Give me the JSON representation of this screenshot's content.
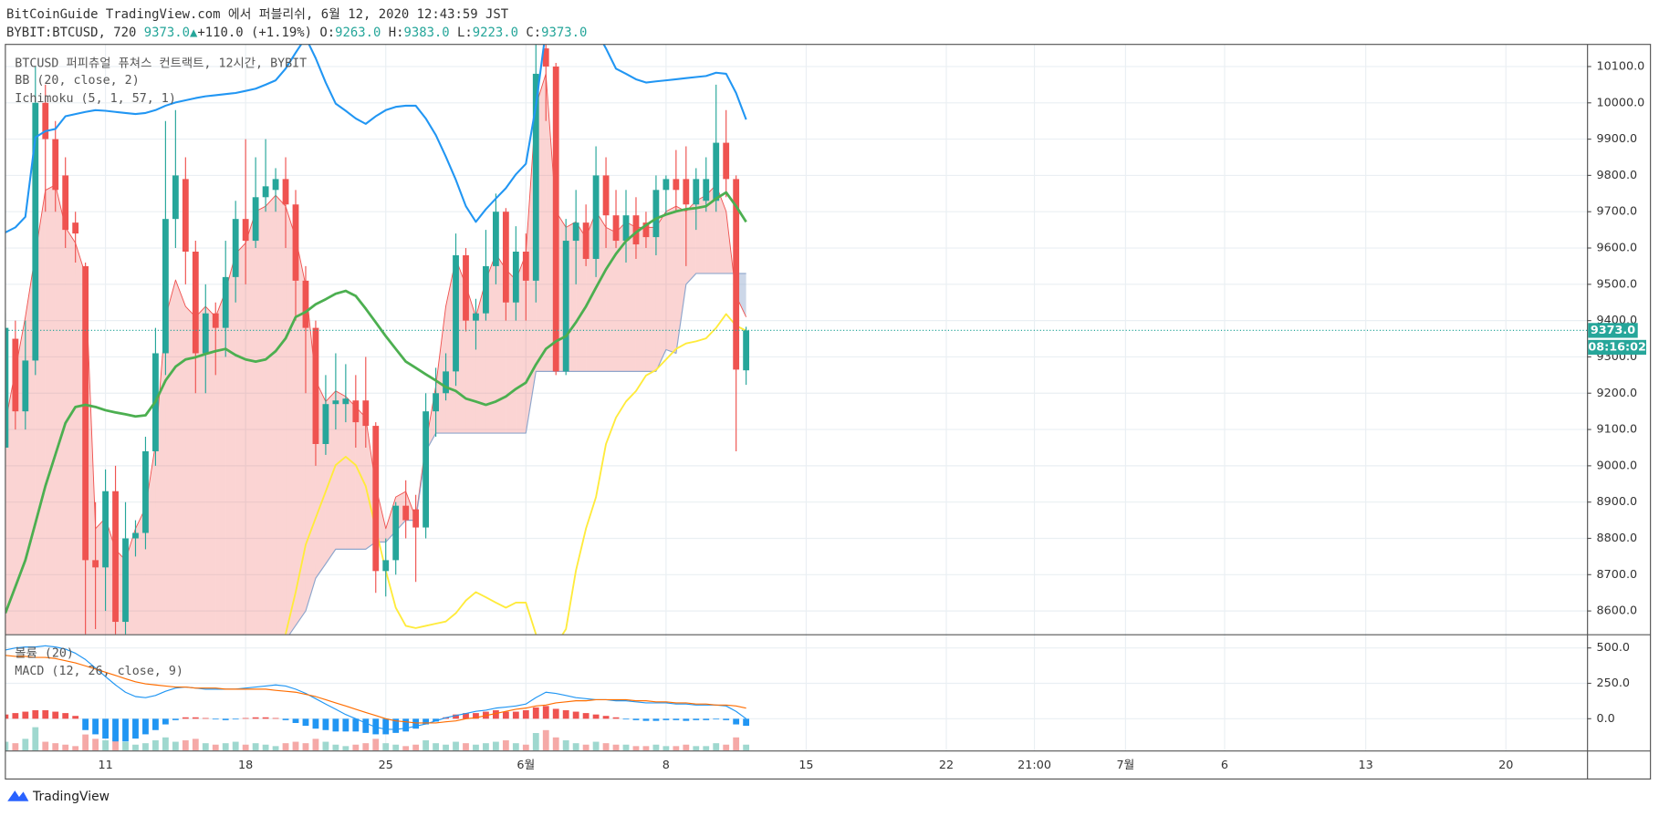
{
  "header": {
    "published": "BitCoinGuide TradingView.com 에서 퍼블리쉬, 6월 12, 2020 12:43:59 JST",
    "symbol": "BYBIT:BTCUSD, 720",
    "last": "9373.0",
    "arrow": "▲",
    "change": "+110.0 (+1.19%)",
    "o_label": "O:",
    "o": "9263.0",
    "h_label": "H:",
    "h": "9383.0",
    "l_label": "L:",
    "l": "9223.0",
    "c_label": "C:",
    "c": "9373.0"
  },
  "footer": {
    "brand": "TradingView"
  },
  "chart_data": [
    {
      "type": "candlestick",
      "legend": [
        "BTCUSD 퍼피츄얼 퓨쳐스 컨트랙트, 12시간, BYBIT",
        "BB (20, close, 2)",
        "Ichimoku (5, 1, 57, 1)"
      ],
      "price_label": "9373.0",
      "countdown": "08:16:02",
      "up_color": "#26a69a",
      "down_color": "#ef5350",
      "grid": true,
      "xlim": [
        0,
        158
      ],
      "xticks": [
        {
          "value": 10,
          "label": "11"
        },
        {
          "value": 24,
          "label": "18"
        },
        {
          "value": 38,
          "label": "25"
        },
        {
          "value": 52,
          "label": "6월"
        },
        {
          "value": 66,
          "label": "8"
        },
        {
          "value": 80,
          "label": "15"
        },
        {
          "value": 94,
          "label": "22"
        },
        {
          "value": 102.8,
          "label": "21:00"
        },
        {
          "value": 111.9,
          "label": "7월"
        },
        {
          "value": 121.8,
          "label": "6"
        },
        {
          "value": 135.9,
          "label": "13"
        },
        {
          "value": 149.9,
          "label": "20"
        }
      ],
      "ylim": [
        8536,
        10161
      ],
      "yticks": [
        {
          "value": 8600,
          "label": "8600.0"
        },
        {
          "value": 8700,
          "label": "8700.0"
        },
        {
          "value": 8800,
          "label": "8800.0"
        },
        {
          "value": 8900,
          "label": "8900.0"
        },
        {
          "value": 9000,
          "label": "9000.0"
        },
        {
          "value": 9100,
          "label": "9100.0"
        },
        {
          "value": 9200,
          "label": "9200.0"
        },
        {
          "value": 9300,
          "label": "9300.0"
        },
        {
          "value": 9400,
          "label": "9400.0"
        },
        {
          "value": 9500,
          "label": "9500.0"
        },
        {
          "value": 9600,
          "label": "9600.0"
        },
        {
          "value": 9700,
          "label": "9700.0"
        },
        {
          "value": 9800,
          "label": "9800.0"
        },
        {
          "value": 9900,
          "label": "9900.0"
        },
        {
          "value": 10000,
          "label": "10000.0"
        },
        {
          "value": 10100,
          "label": "10100.0"
        }
      ],
      "open": [
        9050,
        9350,
        9150,
        9290,
        10000,
        9900,
        9800,
        9670,
        9550,
        8740,
        8720,
        8930,
        8570,
        8800,
        8815,
        9040,
        9310,
        9680,
        9790,
        9590,
        9310,
        9420,
        9380,
        9520,
        9680,
        9620,
        9740,
        9760,
        9790,
        9720,
        9510,
        9380,
        9060,
        9170,
        9170,
        9180,
        9180,
        9110,
        8710,
        8740,
        8890,
        8880,
        8830,
        9150,
        9200,
        9260,
        9580,
        9400,
        9420,
        9550,
        9700,
        9450,
        9590,
        9510,
        10150,
        10100,
        9260,
        9620,
        9670,
        9570,
        9800,
        9690,
        9620,
        9690,
        9670,
        9630,
        9760,
        9790,
        9790,
        9720,
        9730,
        9730,
        9890,
        9790,
        9263
      ],
      "high": [
        9420,
        9400,
        9400,
        10100,
        10050,
        9950,
        9850,
        9700,
        9560,
        8900,
        8990,
        9000,
        8900,
        8850,
        9080,
        9380,
        9950,
        9980,
        9850,
        9620,
        9500,
        9450,
        9620,
        9730,
        9900,
        9850,
        9900,
        9820,
        9850,
        9760,
        9550,
        9400,
        9250,
        9310,
        9280,
        9250,
        9300,
        9120,
        8800,
        8900,
        8960,
        8920,
        9200,
        9270,
        9310,
        9640,
        9600,
        9460,
        9650,
        9750,
        9710,
        9660,
        9640,
        10250,
        10250,
        10110,
        9680,
        9760,
        9720,
        9880,
        9850,
        9760,
        9760,
        9740,
        9700,
        9800,
        9800,
        9870,
        9880,
        9820,
        9850,
        10050,
        9980,
        9800,
        9383
      ],
      "low": [
        8990,
        9100,
        9100,
        9250,
        9700,
        9700,
        9600,
        9560,
        8536,
        8550,
        8600,
        8536,
        8536,
        8750,
        8770,
        9000,
        9250,
        9600,
        9500,
        9200,
        9200,
        9250,
        9300,
        9450,
        9500,
        9600,
        9700,
        9700,
        9600,
        9400,
        9200,
        9000,
        9030,
        9100,
        9120,
        9050,
        9050,
        8650,
        8640,
        8700,
        8800,
        8680,
        8800,
        9080,
        9180,
        9220,
        9370,
        9320,
        9400,
        9500,
        9400,
        9400,
        9400,
        9450,
        9950,
        9250,
        9250,
        9500,
        9550,
        9520,
        9600,
        9600,
        9560,
        9570,
        9600,
        9580,
        9690,
        9700,
        9550,
        9650,
        9700,
        9700,
        9740,
        9040,
        9223
      ],
      "close": [
        9380,
        9150,
        9290,
        10000,
        9900,
        9760,
        9650,
        9640,
        8740,
        8720,
        8930,
        8570,
        8800,
        8815,
        9040,
        9310,
        9680,
        9800,
        9590,
        9310,
        9420,
        9380,
        9520,
        9680,
        9620,
        9740,
        9770,
        9790,
        9720,
        9510,
        9380,
        9060,
        9170,
        9180,
        9185,
        9120,
        9110,
        8710,
        8740,
        8890,
        8850,
        8830,
        9150,
        9200,
        9260,
        9580,
        9400,
        9420,
        9550,
        9700,
        9450,
        9590,
        9510,
        10080,
        10100,
        9260,
        9620,
        9670,
        9570,
        9800,
        9690,
        9620,
        9690,
        9610,
        9630,
        9760,
        9790,
        9760,
        9720,
        9790,
        9790,
        9890,
        9790,
        9265,
        9373
      ],
      "bb_upper": {
        "color": "#2196f3",
        "values": [
          9643,
          9657,
          9686,
          9905,
          9922,
          9928,
          9963,
          9969,
          9975,
          9980,
          9978,
          9975,
          9972,
          9969,
          9972,
          9980,
          9992,
          10001,
          10007,
          10013,
          10018,
          10021,
          10024,
          10027,
          10033,
          10039,
          10050,
          10062,
          10094,
          10138,
          10180,
          10123,
          10056,
          9998,
          9978,
          9957,
          9942,
          9963,
          9980,
          9989,
          9992,
          9992,
          9957,
          9911,
          9852,
          9788,
          9715,
          9672,
          9707,
          9736,
          9765,
          9803,
          9832,
          9992,
          10200,
          10250,
          10270,
          10250,
          10220,
          10200,
          10150,
          10094,
          10080,
          10065,
          10056,
          10059,
          10062,
          10065,
          10068,
          10071,
          10074,
          10083,
          10080,
          10027,
          9954
        ]
      },
      "bb_basis": {
        "color": "#4caf50",
        "values": [
          8594,
          8667,
          8740,
          8842,
          8944,
          9031,
          9118,
          9162,
          9168,
          9162,
          9153,
          9147,
          9142,
          9136,
          9139,
          9177,
          9235,
          9273,
          9293,
          9299,
          9308,
          9316,
          9322,
          9305,
          9293,
          9287,
          9293,
          9316,
          9351,
          9410,
          9424,
          9445,
          9459,
          9474,
          9482,
          9468,
          9433,
          9395,
          9357,
          9322,
          9287,
          9270,
          9252,
          9235,
          9217,
          9206,
          9185,
          9177,
          9168,
          9177,
          9191,
          9212,
          9229,
          9279,
          9322,
          9343,
          9357,
          9395,
          9439,
          9491,
          9541,
          9584,
          9619,
          9643,
          9663,
          9681,
          9692,
          9701,
          9707,
          9710,
          9715,
          9736,
          9753,
          9715,
          9672
        ]
      },
      "span_a": {
        "color": "#ef5350",
        "values": [
          9118,
          9264,
          9410,
          9584,
          9759,
          9774,
          9657,
          9614,
          9526,
          8827,
          8856,
          8769,
          8740,
          8827,
          8885,
          9060,
          9410,
          9512,
          9439,
          9410,
          9439,
          9410,
          9482,
          9584,
          9614,
          9701,
          9715,
          9745,
          9715,
          9628,
          9497,
          9235,
          9177,
          9206,
          9191,
          9162,
          9133,
          8944,
          8827,
          8914,
          8929,
          8856,
          9060,
          9220,
          9439,
          9570,
          9497,
          9410,
          9512,
          9584,
          9541,
          9512,
          9584,
          9992,
          10080,
          9701,
          9657,
          9672,
          9628,
          9701,
          9657,
          9643,
          9672,
          9657,
          9657,
          9657,
          9701,
          9715,
          9701,
          9730,
          9745,
          9774,
          9701,
          9468,
          9410
        ]
      },
      "span_b": {
        "color": "#8fa6cc",
        "values": [
          8450,
          8450,
          8450,
          8450,
          8450,
          8450,
          8450,
          8450,
          8450,
          8450,
          8450,
          8450,
          8450,
          8450,
          8450,
          8450,
          8450,
          8450,
          8450,
          8450,
          8450,
          8450,
          8450,
          8450,
          8450,
          8450,
          8450,
          8450,
          8520,
          8560,
          8600,
          8690,
          8730,
          8770,
          8770,
          8770,
          8770,
          8790,
          8790,
          8820,
          8850,
          8850,
          9040,
          9090,
          9090,
          9090,
          9090,
          9090,
          9090,
          9090,
          9090,
          9090,
          9090,
          9260,
          9260,
          9260,
          9260,
          9260,
          9260,
          9260,
          9260,
          9260,
          9260,
          9260,
          9260,
          9260,
          9320,
          9310,
          9500,
          9530,
          9530,
          9530,
          9530,
          9530,
          9530
        ]
      },
      "lagging": {
        "color": "#ffeb3b",
        "values": [
          null,
          null,
          null,
          null,
          null,
          null,
          null,
          null,
          null,
          null,
          null,
          null,
          null,
          null,
          null,
          null,
          null,
          null,
          null,
          null,
          null,
          null,
          null,
          null,
          null,
          null,
          null,
          null,
          8536,
          8652,
          8783,
          8856,
          8929,
          9002,
          9025,
          9002,
          8944,
          8827,
          8711,
          8609,
          8559,
          8553,
          8559,
          8565,
          8571,
          8594,
          8629,
          8652,
          8638,
          8623,
          8609,
          8623,
          8623,
          8536,
          8492,
          8507,
          8550,
          8711,
          8827,
          8914,
          9060,
          9133,
          9177,
          9206,
          9249,
          9264,
          9293,
          9322,
          9337,
          9343,
          9351,
          9380,
          9418,
          9386,
          9372
        ]
      }
    },
    {
      "type": "macd",
      "legend": [
        "볼륨 (20)",
        "MACD (12, 26, close, 9)"
      ],
      "ylim": [
        -224,
        597
      ],
      "yticks": [
        {
          "value": 500,
          "label": "500.0"
        },
        {
          "value": 250,
          "label": "250.0"
        },
        {
          "value": 0,
          "label": "0.0"
        }
      ],
      "volume_lim": [
        0,
        400
      ],
      "volume_up_color": "#9fd8cf",
      "volume_down_color": "#f5a9a7",
      "volume": [
        30,
        25,
        40,
        80,
        30,
        25,
        20,
        15,
        55,
        40,
        35,
        45,
        30,
        20,
        25,
        35,
        45,
        30,
        35,
        40,
        25,
        20,
        25,
        30,
        20,
        25,
        20,
        15,
        25,
        30,
        25,
        40,
        30,
        20,
        15,
        20,
        25,
        40,
        25,
        20,
        15,
        20,
        35,
        25,
        20,
        30,
        25,
        20,
        25,
        30,
        35,
        25,
        20,
        60,
        70,
        45,
        35,
        25,
        20,
        30,
        25,
        20,
        20,
        15,
        15,
        20,
        15,
        15,
        20,
        15,
        15,
        25,
        20,
        45,
        20
      ],
      "hist_up_color": "#ef5350",
      "hist_down_color": "#2196f3",
      "histogram": [
        30,
        40,
        50,
        60,
        60,
        50,
        40,
        20,
        -80,
        -110,
        -140,
        -160,
        -160,
        -140,
        -110,
        -80,
        -40,
        -10,
        10,
        10,
        5,
        -5,
        -10,
        -5,
        5,
        10,
        10,
        5,
        -10,
        -30,
        -50,
        -70,
        -80,
        -90,
        -90,
        -90,
        -100,
        -110,
        -110,
        -100,
        -90,
        -70,
        -40,
        -20,
        10,
        30,
        40,
        40,
        50,
        60,
        50,
        50,
        60,
        80,
        90,
        70,
        60,
        50,
        40,
        30,
        20,
        10,
        -5,
        -10,
        -15,
        -15,
        -10,
        -10,
        -15,
        -10,
        -10,
        -5,
        -10,
        -40,
        -50
      ],
      "macd": {
        "color": "#2196f3",
        "values": [
          485,
          500,
          507,
          507,
          515,
          507,
          492,
          463,
          418,
          358,
          298,
          239,
          187,
          157,
          149,
          164,
          194,
          216,
          224,
          216,
          209,
          209,
          209,
          209,
          216,
          224,
          231,
          239,
          231,
          209,
          179,
          142,
          104,
          67,
          30,
          0,
          -30,
          -60,
          -75,
          -75,
          -67,
          -52,
          -37,
          -15,
          7,
          22,
          37,
          52,
          60,
          75,
          82,
          90,
          104,
          149,
          187,
          179,
          164,
          149,
          142,
          134,
          134,
          127,
          127,
          119,
          112,
          112,
          112,
          104,
          104,
          97,
          97,
          97,
          90,
          52,
          0
        ]
      },
      "signal": {
        "color": "#ff6d00",
        "values": [
          448,
          440,
          440,
          433,
          433,
          425,
          410,
          395,
          373,
          351,
          328,
          306,
          283,
          261,
          246,
          239,
          231,
          224,
          224,
          216,
          216,
          216,
          209,
          209,
          209,
          209,
          209,
          201,
          194,
          187,
          172,
          157,
          134,
          112,
          90,
          67,
          45,
          22,
          0,
          -15,
          -22,
          -30,
          -30,
          -30,
          -22,
          -15,
          0,
          7,
          22,
          37,
          52,
          67,
          75,
          90,
          97,
          112,
          119,
          127,
          127,
          134,
          134,
          134,
          134,
          127,
          127,
          119,
          119,
          112,
          112,
          104,
          104,
          97,
          97,
          90,
          75
        ]
      }
    }
  ]
}
